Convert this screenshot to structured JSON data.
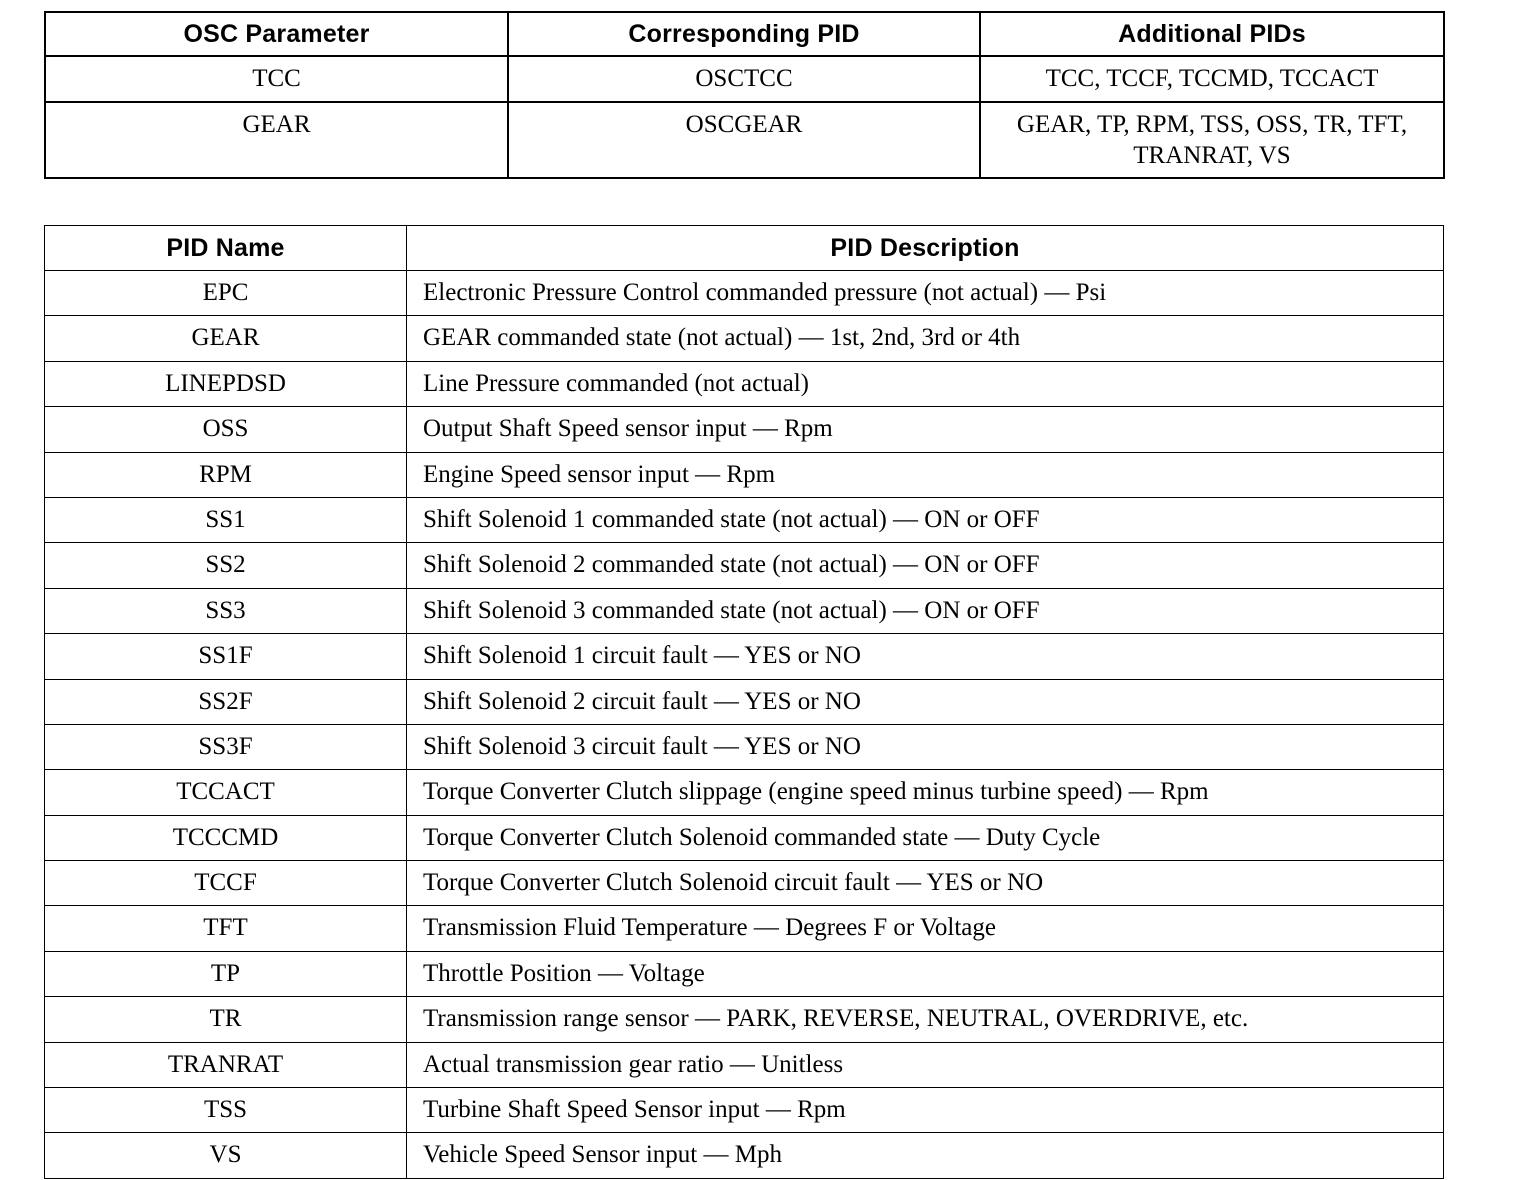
{
  "osc_table": {
    "headers": [
      "OSC Parameter",
      "Corresponding PID",
      "Additional PIDs"
    ],
    "rows": [
      [
        "TCC",
        "OSCTCC",
        "TCC, TCCF, TCCMD, TCCACT"
      ],
      [
        "GEAR",
        "OSCGEAR",
        "GEAR, TP, RPM, TSS, OSS, TR, TFT, TRANRAT, VS"
      ]
    ]
  },
  "pid_table": {
    "headers": [
      "PID Name",
      "PID Description"
    ],
    "rows": [
      [
        "EPC",
        "Electronic Pressure Control commanded pressure (not actual) — Psi"
      ],
      [
        "GEAR",
        "GEAR commanded state (not actual) — 1st, 2nd, 3rd or 4th"
      ],
      [
        "LINEPDSD",
        "Line Pressure commanded (not actual)"
      ],
      [
        "OSS",
        "Output Shaft Speed sensor input — Rpm"
      ],
      [
        "RPM",
        "Engine Speed sensor input — Rpm"
      ],
      [
        "SS1",
        "Shift Solenoid 1 commanded state (not actual) — ON or OFF"
      ],
      [
        "SS2",
        "Shift Solenoid 2 commanded state (not actual) — ON or OFF"
      ],
      [
        "SS3",
        "Shift Solenoid 3 commanded state (not actual) — ON or OFF"
      ],
      [
        "SS1F",
        "Shift Solenoid 1 circuit fault — YES or NO"
      ],
      [
        "SS2F",
        "Shift Solenoid 2 circuit fault — YES or NO"
      ],
      [
        "SS3F",
        "Shift Solenoid 3 circuit fault — YES or NO"
      ],
      [
        "TCCACT",
        "Torque Converter Clutch slippage (engine speed minus turbine speed) — Rpm"
      ],
      [
        "TCCCMD",
        "Torque Converter Clutch Solenoid commanded state — Duty Cycle"
      ],
      [
        "TCCF",
        "Torque Converter Clutch Solenoid circuit fault — YES or NO"
      ],
      [
        "TFT",
        "Transmission Fluid Temperature — Degrees F or Voltage"
      ],
      [
        "TP",
        "Throttle Position — Voltage"
      ],
      [
        "TR",
        "Transmission range sensor — PARK, REVERSE, NEUTRAL, OVERDRIVE, etc."
      ],
      [
        "TRANRAT",
        "Actual transmission gear ratio — Unitless"
      ],
      [
        "TSS",
        "Turbine Shaft Speed Sensor input — Rpm"
      ],
      [
        "VS",
        "Vehicle Speed Sensor input — Mph"
      ]
    ]
  }
}
